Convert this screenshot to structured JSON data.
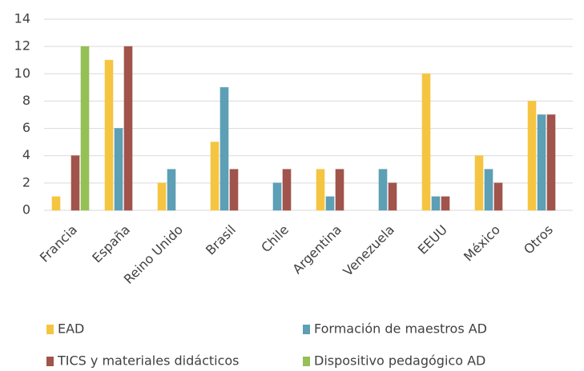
{
  "chart_data": {
    "type": "bar",
    "categories": [
      "Francia",
      "España",
      "Reino Unido",
      "Brasil",
      "Chile",
      "Argentina",
      "Venezuela",
      "EEUU",
      "México",
      "Otros"
    ],
    "series": [
      {
        "name": "EAD",
        "color": "#f5c542",
        "values": [
          1,
          11,
          2,
          5,
          0,
          3,
          0,
          10,
          4,
          8
        ]
      },
      {
        "name": "Formación de maestros AD",
        "color": "#5d9fb5",
        "values": [
          0,
          6,
          3,
          9,
          2,
          1,
          3,
          1,
          3,
          7
        ]
      },
      {
        "name": "TICS y materiales didácticos",
        "color": "#a0544b",
        "values": [
          4,
          12,
          0,
          3,
          3,
          3,
          2,
          1,
          2,
          7
        ]
      },
      {
        "name": "Dispositivo pedagógico AD",
        "color": "#94c055",
        "values": [
          12,
          0,
          0,
          0,
          0,
          0,
          0,
          0,
          0,
          0
        ]
      }
    ],
    "ylim": [
      0,
      14
    ],
    "yticks": [
      0,
      2,
      4,
      6,
      8,
      10,
      12,
      14
    ],
    "grid": true,
    "legend": "bottom"
  }
}
